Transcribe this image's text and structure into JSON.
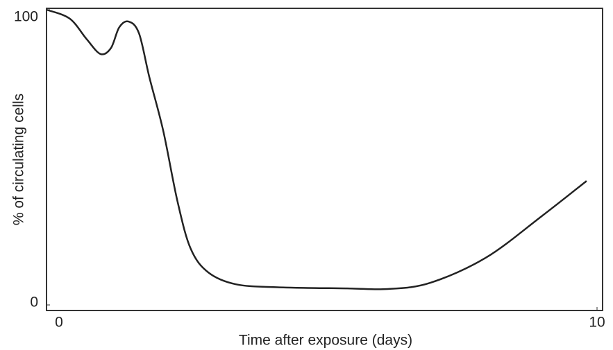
{
  "chart_data": {
    "type": "line",
    "x_label": "Time after exposure (days)",
    "y_label": "% of circulating cells",
    "x": [
      0,
      0.42,
      0.73,
      0.98,
      1.17,
      1.32,
      1.49,
      1.68,
      1.87,
      2.12,
      2.38,
      2.62,
      2.94,
      3.44,
      4.2,
      5.46,
      6.2,
      6.97,
      7.98,
      8.99,
      9.81
    ],
    "series": [
      {
        "name": null,
        "color": "#222222",
        "values": [
          100,
          97,
          90,
          85,
          87,
          94,
          96,
          92,
          77,
          59,
          35,
          19,
          11,
          7,
          6,
          5.6,
          5.4,
          7.5,
          16,
          30,
          42
        ]
      }
    ],
    "xlim": [
      0,
      10
    ],
    "xticks": [
      0,
      10
    ],
    "ylim": [
      0,
      100
    ],
    "yticks": [
      0,
      100
    ],
    "grid": false
  }
}
